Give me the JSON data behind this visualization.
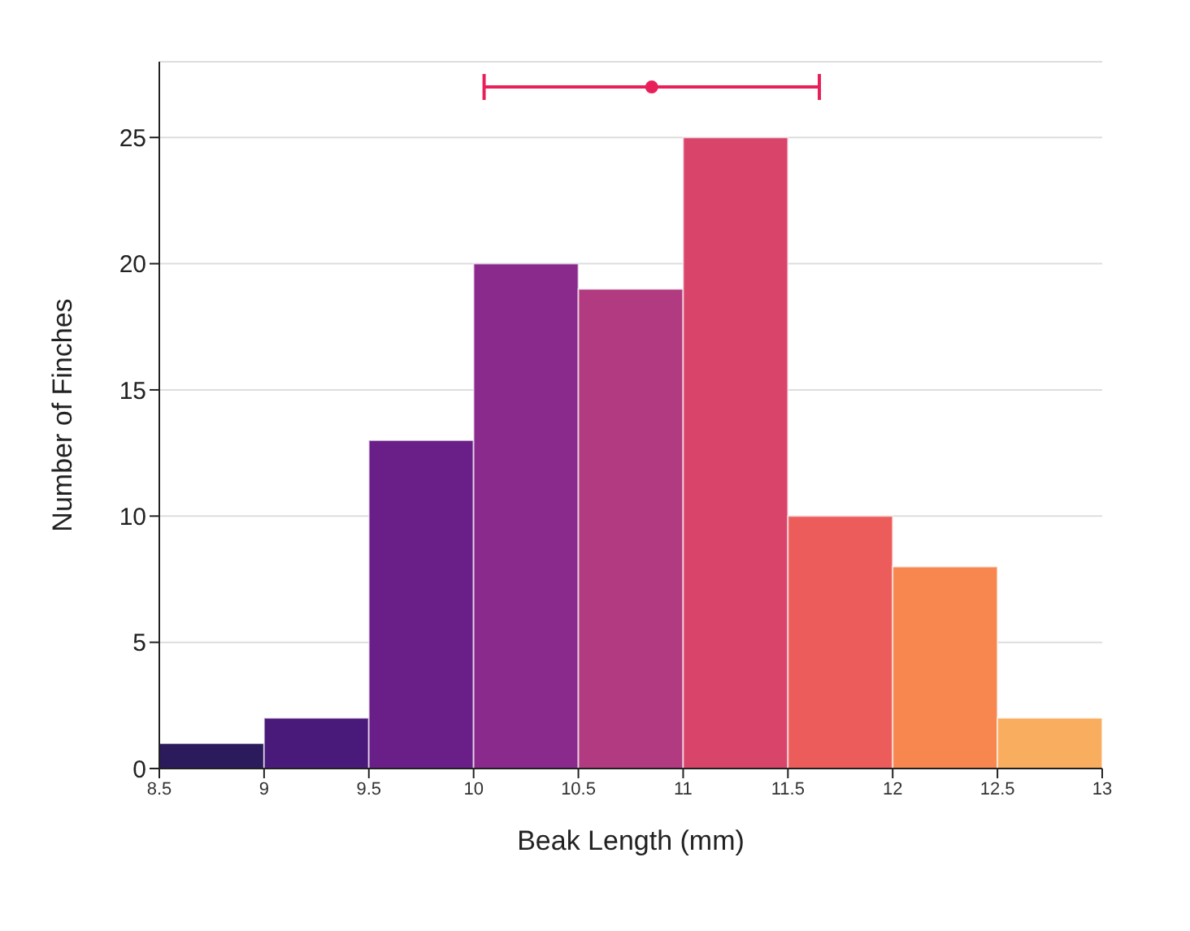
{
  "chart_data": {
    "type": "histogram",
    "xlabel": "Beak Length (mm)",
    "ylabel": "Number of Finches",
    "bins": [
      8.5,
      9,
      9.5,
      10,
      10.5,
      11,
      11.5,
      12,
      12.5,
      13
    ],
    "values": [
      1,
      2,
      13,
      20,
      19,
      25,
      10,
      8,
      2
    ],
    "colors": [
      "#2b1a5c",
      "#4a1a7a",
      "#6a1f88",
      "#8a2a8c",
      "#b23a80",
      "#d8446a",
      "#ec5c5a",
      "#f7874e",
      "#f9ad5e"
    ],
    "series": [
      {
        "type": "scatter",
        "color": "#e8205a",
        "x": [
          10.85
        ],
        "values": [
          27
        ],
        "xerrors": [
          [
            10.05,
            11.65
          ]
        ]
      }
    ],
    "xlim": [
      8.5,
      13
    ],
    "xticks": [
      8.5,
      9,
      9.5,
      10,
      10.5,
      11,
      11.5,
      12,
      12.5,
      13
    ],
    "ylim": [
      0,
      28
    ],
    "yticks": [
      0,
      5,
      10,
      15,
      20,
      25
    ],
    "grid": "y"
  }
}
